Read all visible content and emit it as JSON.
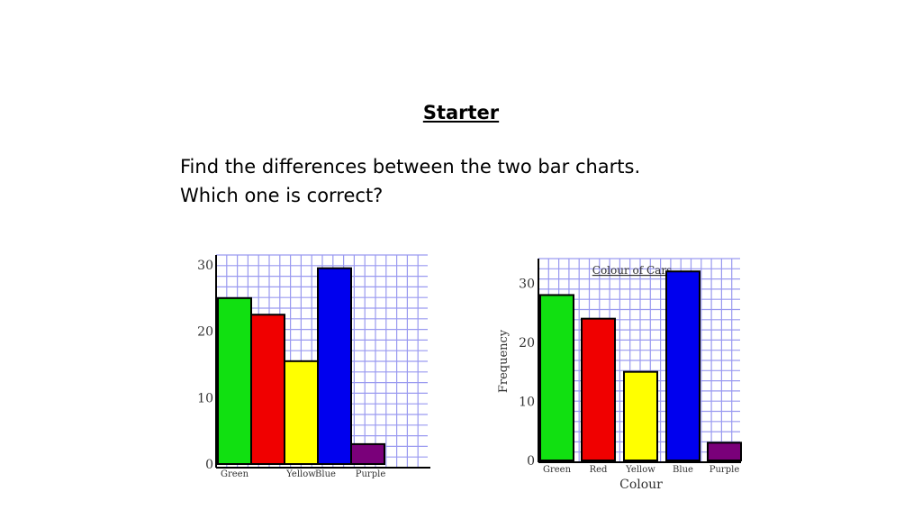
{
  "heading": "Starter",
  "question_line1": "Find the differences between the two bar charts.",
  "question_line2": "Which one is correct?",
  "chart_data": [
    {
      "type": "bar",
      "title": "",
      "xlabel": "",
      "ylabel": "",
      "ylim": [
        0,
        30
      ],
      "yticks": [
        0,
        10,
        20,
        30
      ],
      "grid": true,
      "categories": [
        "Green",
        "",
        "Yellow",
        "Blue",
        "Purple"
      ],
      "values": [
        25,
        22.5,
        15.5,
        29.5,
        3
      ],
      "colors": [
        "#11e011",
        "#f00000",
        "#ffff00",
        "#0000ee",
        "#7a007a"
      ]
    },
    {
      "type": "bar",
      "title": "Colour of Cars",
      "xlabel": "Colour",
      "ylabel": "Frequency",
      "ylim": [
        0,
        36
      ],
      "yticks": [
        0,
        10,
        20,
        30
      ],
      "grid": true,
      "categories": [
        "Green",
        "Red",
        "Yellow",
        "Blue",
        "Purple"
      ],
      "values": [
        28,
        24,
        15,
        32,
        3
      ],
      "colors": [
        "#11e011",
        "#f00000",
        "#ffff00",
        "#0000ee",
        "#7a007a"
      ]
    }
  ]
}
